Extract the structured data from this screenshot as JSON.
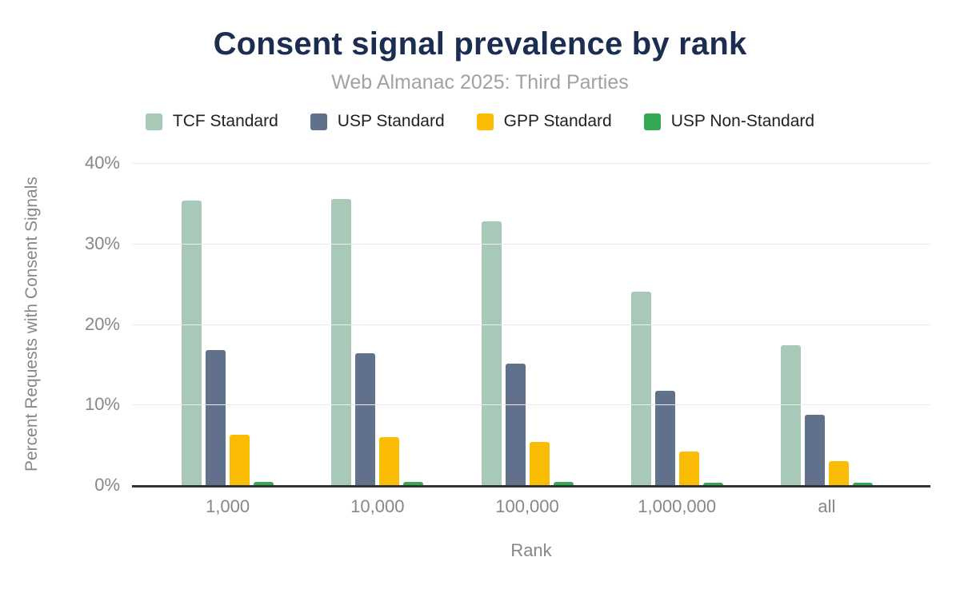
{
  "chart_data": {
    "type": "bar",
    "title": "Consent signal prevalence by rank",
    "subtitle": "Web Almanac 2025: Third Parties",
    "xlabel": "Rank",
    "ylabel": "Percent Requests with Consent Signals",
    "categories": [
      "1,000",
      "10,000",
      "100,000",
      "1,000,000",
      "all"
    ],
    "series": [
      {
        "name": "TCF Standard",
        "color": "#a8c9b8",
        "values": [
          35.3,
          35.5,
          32.8,
          24.0,
          17.4
        ]
      },
      {
        "name": "USP Standard",
        "color": "#61718c",
        "values": [
          16.8,
          16.4,
          15.1,
          11.7,
          8.7
        ]
      },
      {
        "name": "GPP Standard",
        "color": "#fbbc04",
        "values": [
          6.3,
          6.0,
          5.4,
          4.2,
          3.0
        ]
      },
      {
        "name": "USP Non-Standard",
        "color": "#34a853",
        "values": [
          0.4,
          0.4,
          0.4,
          0.3,
          0.25
        ]
      }
    ],
    "ylim": [
      0,
      40
    ],
    "yticks": [
      "40%",
      "30%",
      "20%",
      "10%",
      "0%"
    ],
    "grid": true,
    "legend_position": "top"
  },
  "colors": {
    "title": "#1b2d51",
    "subtitle": "#a2a2a6",
    "axis_text": "#85878c",
    "gridline": "#ececec",
    "axis_line": "#333333",
    "legend_text": "#202126",
    "background": "#ffffff"
  }
}
